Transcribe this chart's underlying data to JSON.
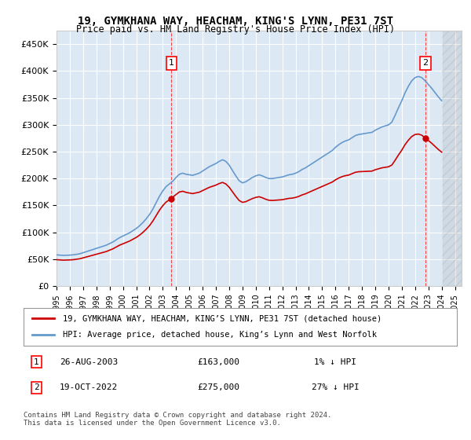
{
  "title": "19, GYMKHANA WAY, HEACHAM, KING'S LYNN, PE31 7ST",
  "subtitle": "Price paid vs. HM Land Registry's House Price Index (HPI)",
  "ylabel_ticks": [
    0,
    50000,
    100000,
    150000,
    200000,
    250000,
    300000,
    350000,
    400000,
    450000
  ],
  "ylabel_labels": [
    "£0",
    "£50K",
    "£100K",
    "£150K",
    "£200K",
    "£250K",
    "£300K",
    "£350K",
    "£400K",
    "£450K"
  ],
  "ylim": [
    0,
    475000
  ],
  "xlim_start": 1995.0,
  "xlim_end": 2025.5,
  "background_color": "#dce9f5",
  "plot_bg": "#dce9f5",
  "line_color_red": "#cc0000",
  "line_color_blue": "#6699cc",
  "purchase1_x": 2003.65,
  "purchase1_y": 163000,
  "purchase2_x": 2022.79,
  "purchase2_y": 275000,
  "legend1": "19, GYMKHANA WAY, HEACHAM, KING’S LYNN, PE31 7ST (detached house)",
  "legend2": "HPI: Average price, detached house, King’s Lynn and West Norfolk",
  "table_row1_label": "1",
  "table_row1_date": "26-AUG-2003",
  "table_row1_price": "£163,000",
  "table_row1_hpi": "1% ↓ HPI",
  "table_row2_label": "2",
  "table_row2_date": "19-OCT-2022",
  "table_row2_price": "£275,000",
  "table_row2_hpi": "27% ↓ HPI",
  "footer": "Contains HM Land Registry data © Crown copyright and database right 2024.\nThis data is licensed under the Open Government Licence v3.0.",
  "hpi_data_x": [
    1995.0,
    1995.25,
    1995.5,
    1995.75,
    1996.0,
    1996.25,
    1996.5,
    1996.75,
    1997.0,
    1997.25,
    1997.5,
    1997.75,
    1998.0,
    1998.25,
    1998.5,
    1998.75,
    1999.0,
    1999.25,
    1999.5,
    1999.75,
    2000.0,
    2000.25,
    2000.5,
    2000.75,
    2001.0,
    2001.25,
    2001.5,
    2001.75,
    2002.0,
    2002.25,
    2002.5,
    2002.75,
    2003.0,
    2003.25,
    2003.5,
    2003.75,
    2004.0,
    2004.25,
    2004.5,
    2004.75,
    2005.0,
    2005.25,
    2005.5,
    2005.75,
    2006.0,
    2006.25,
    2006.5,
    2006.75,
    2007.0,
    2007.25,
    2007.5,
    2007.75,
    2008.0,
    2008.25,
    2008.5,
    2008.75,
    2009.0,
    2009.25,
    2009.5,
    2009.75,
    2010.0,
    2010.25,
    2010.5,
    2010.75,
    2011.0,
    2011.25,
    2011.5,
    2011.75,
    2012.0,
    2012.25,
    2012.5,
    2012.75,
    2013.0,
    2013.25,
    2013.5,
    2013.75,
    2014.0,
    2014.25,
    2014.5,
    2014.75,
    2015.0,
    2015.25,
    2015.5,
    2015.75,
    2016.0,
    2016.25,
    2016.5,
    2016.75,
    2017.0,
    2017.25,
    2017.5,
    2017.75,
    2018.0,
    2018.25,
    2018.5,
    2018.75,
    2019.0,
    2019.25,
    2019.5,
    2019.75,
    2020.0,
    2020.25,
    2020.5,
    2020.75,
    2021.0,
    2021.25,
    2021.5,
    2021.75,
    2022.0,
    2022.25,
    2022.5,
    2022.75,
    2023.0,
    2023.25,
    2023.5,
    2023.75,
    2024.0
  ],
  "hpi_data_y": [
    58000,
    57500,
    57000,
    57200,
    57500,
    58000,
    59000,
    60000,
    62000,
    64000,
    66000,
    68000,
    70000,
    72000,
    74000,
    76000,
    79000,
    82000,
    86000,
    90000,
    93000,
    96000,
    99000,
    103000,
    107000,
    112000,
    118000,
    125000,
    133000,
    143000,
    155000,
    167000,
    177000,
    185000,
    190000,
    195000,
    202000,
    208000,
    210000,
    208000,
    207000,
    206000,
    208000,
    210000,
    214000,
    218000,
    222000,
    225000,
    228000,
    232000,
    235000,
    232000,
    225000,
    215000,
    205000,
    196000,
    192000,
    194000,
    198000,
    202000,
    205000,
    207000,
    205000,
    202000,
    200000,
    200000,
    201000,
    202000,
    203000,
    205000,
    207000,
    208000,
    210000,
    213000,
    217000,
    220000,
    224000,
    228000,
    232000,
    236000,
    240000,
    244000,
    248000,
    252000,
    258000,
    263000,
    267000,
    270000,
    272000,
    276000,
    280000,
    282000,
    283000,
    284000,
    285000,
    286000,
    290000,
    293000,
    296000,
    298000,
    300000,
    305000,
    318000,
    332000,
    345000,
    360000,
    372000,
    382000,
    388000,
    390000,
    388000,
    382000,
    375000,
    368000,
    360000,
    352000,
    345000
  ]
}
